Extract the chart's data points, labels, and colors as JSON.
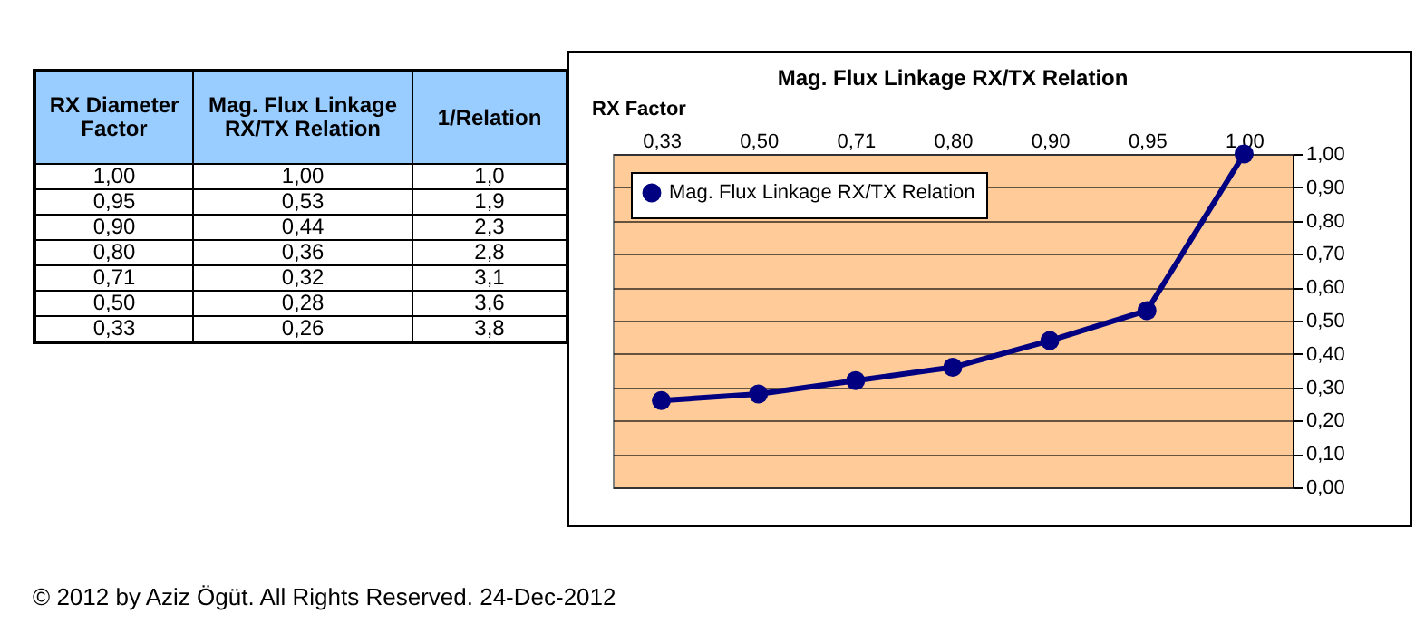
{
  "chart_data": [
    {
      "type": "other",
      "annotations": [
        "RX Diameter Factor",
        "Mag. Flux Linkage RX/TX Relation",
        "1/Relation",
        "1,00",
        "1,00",
        "1,0",
        "0,95",
        "0,53",
        "1,9",
        "0,90",
        "0,44",
        "2,3",
        "0,80",
        "0,36",
        "2,8",
        "0,71",
        "0,32",
        "3,1",
        "0,50",
        "0,28",
        "3,6",
        "0,33",
        "0,26",
        "3,8"
      ]
    },
    {
      "type": "line",
      "title": "Mag. Flux Linkage RX/TX Relation",
      "xlabel": "RX Factor",
      "categories": [
        "0,33",
        "0,50",
        "0,71",
        "0,80",
        "0,90",
        "0,95",
        "1,00"
      ],
      "series": [
        {
          "name": "Mag. Flux Linkage RX/TX Relation",
          "color": "#000080",
          "values": [
            0.26,
            0.28,
            0.32,
            0.36,
            0.44,
            0.53,
            1.0
          ]
        }
      ],
      "ylim": [
        0,
        1
      ],
      "yticks": [
        {
          "value": 0,
          "label": "0,00"
        },
        {
          "value": 0.1,
          "label": "0,10"
        },
        {
          "value": 0.2,
          "label": "0,20"
        },
        {
          "value": 0.3,
          "label": "0,30"
        },
        {
          "value": 0.4,
          "label": "0,40"
        },
        {
          "value": 0.5,
          "label": "0,50"
        },
        {
          "value": 0.6,
          "label": "0,60"
        },
        {
          "value": 0.7,
          "label": "0,70"
        },
        {
          "value": 0.8,
          "label": "0,80"
        },
        {
          "value": 0.9,
          "label": "0,90"
        },
        {
          "value": 1,
          "label": "1,00"
        }
      ],
      "grid": "y",
      "legend": "top left",
      "marker": "circle",
      "annotations": [
        "© 2012 by Aziz Ögüt. All Rights Reserved. 24-Dec-2012"
      ]
    }
  ]
}
